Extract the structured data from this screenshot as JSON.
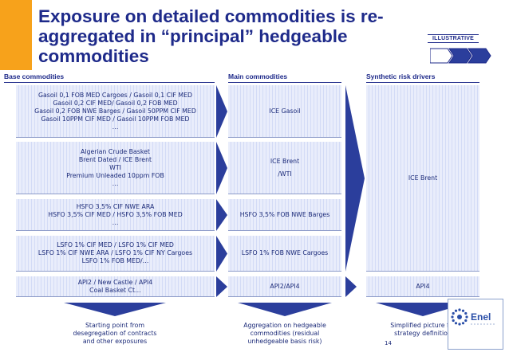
{
  "title": "Exposure on detailed commodities is re-aggregated in “principal” hedgeable commodities",
  "badge": "ILLUSTRATIVE",
  "headers": {
    "base": "Base commodities",
    "main": "Main commodities",
    "synthetic": "Synthetic risk drivers"
  },
  "base": [
    {
      "lines": [
        "Gasoil 0,1 FOB MED Cargoes / Gasoil 0,1 CIF MED",
        "Gasoil 0,2 CIF MED/ Gasoil 0,2 FOB MED",
        "Gasoil 0,2 FOB NWE Barges / Gasoil 50PPM CIF MED",
        "Gasoil 10PPM CIF MED / Gasoil 10PPM FOB MED",
        "…"
      ]
    },
    {
      "lines": [
        "Algerian Crude Basket",
        "Brent Dated / ICE Brent",
        "WTI",
        "Premium Unleaded 10ppm FOB",
        "…"
      ]
    },
    {
      "lines": [
        "HSFO 3,5% CIF NWE ARA",
        "HSFO 3,5% CIF MED /  HSFO 3,5% FOB MED",
        "…"
      ]
    },
    {
      "lines": [
        "LSFO 1% CIF MED / LSFO 1% CIF MED",
        "LSFO 1% CIF NWE ARA / LSFO 1% CIF NY Cargoes",
        "LSFO 1% FOB MED/…"
      ]
    },
    {
      "lines": [
        "API2 / New Castle / API4",
        "Coal Basket Ct…"
      ]
    }
  ],
  "main": [
    {
      "lines": [
        "ICE Gasoil"
      ]
    },
    {
      "lines": [
        "ICE Brent",
        "/WTI"
      ]
    },
    {
      "lines": [
        "HSFO 3,5% FOB NWE Barges"
      ]
    },
    {
      "lines": [
        "LSFO 1% FOB NWE Cargoes"
      ]
    },
    {
      "lines": [
        "API2/API4"
      ]
    }
  ],
  "synthetic": [
    {
      "lines": [
        "ICE Brent"
      ]
    },
    {
      "lines": [
        "API4"
      ]
    }
  ],
  "footnotes": {
    "base": [
      "Starting point from",
      "desegregation of contracts",
      "and other exposures"
    ],
    "main": [
      "Aggregation on hedgeable",
      "commodities (residual",
      "unhedgeable basis risk)"
    ],
    "synthetic": [
      "Simplified picture for",
      "strategy definition"
    ]
  },
  "logo_text": "Enel",
  "page_number": "14",
  "colors": {
    "title": "#1e2a8a",
    "accent": "#f7a21b",
    "arrow": "#2b3e9c",
    "box_fill": "#e9edfb"
  }
}
